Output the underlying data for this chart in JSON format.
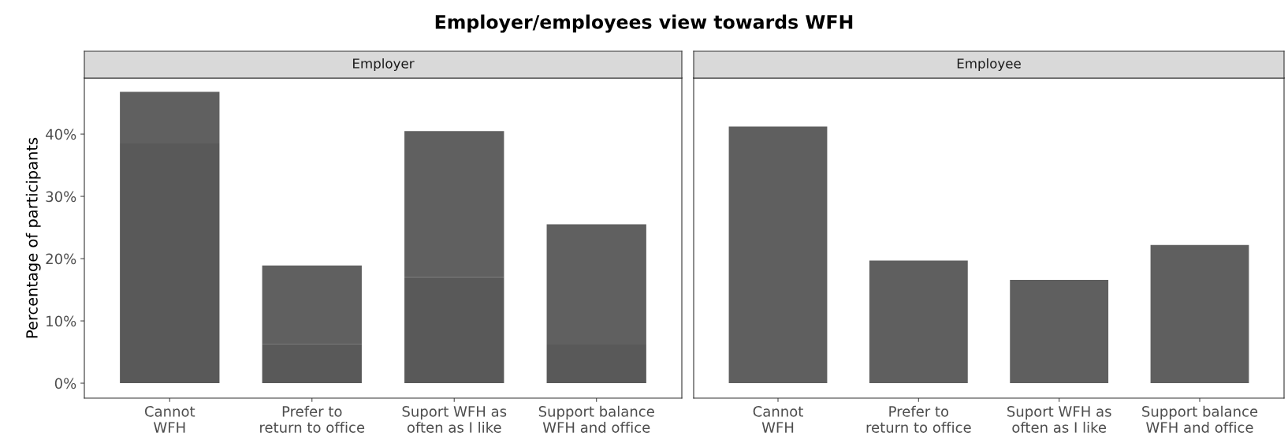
{
  "chart_data": [
    {
      "type": "bar",
      "title": "Employer/employees view towards WFH",
      "subtitle": "Employer",
      "ylabel": "Percentage of participants",
      "categories": [
        "Cannot\nWFH",
        "Prefer to\nreturn to office",
        "Suport WFH as\noften as I like",
        "Support balance\nWFH and office"
      ],
      "stacked": true,
      "series": [
        {
          "color": "#595959",
          "values": [
            38.5,
            6.3,
            17.0,
            6.2
          ]
        },
        {
          "color": "#606060",
          "values": [
            8.3,
            12.6,
            23.5,
            19.3
          ]
        }
      ],
      "ylim": [
        -2.4,
        49
      ],
      "yticks": [
        {
          "value": 0,
          "label": "0%"
        },
        {
          "value": 10,
          "label": "10%"
        },
        {
          "value": 20,
          "label": "20%"
        },
        {
          "value": 30,
          "label": "30%"
        },
        {
          "value": 40,
          "label": "40%"
        }
      ]
    },
    {
      "type": "bar",
      "subtitle": "Employee",
      "categories": [
        "Cannot\nWFH",
        "Prefer to\nreturn to office",
        "Suport WFH as\noften as I like",
        "Support balance\nWFH and office"
      ],
      "series": [
        {
          "color": "#5f5f5f",
          "values": [
            41.2,
            19.7,
            16.6,
            22.2
          ]
        }
      ],
      "ylim": [
        -2.4,
        49
      ],
      "yticks": [
        {
          "value": 0,
          "label": null
        },
        {
          "value": 10,
          "label": null
        },
        {
          "value": 20,
          "label": null
        },
        {
          "value": 30,
          "label": null
        },
        {
          "value": 40,
          "label": null
        }
      ],
      "tick_labels": "x"
    }
  ]
}
